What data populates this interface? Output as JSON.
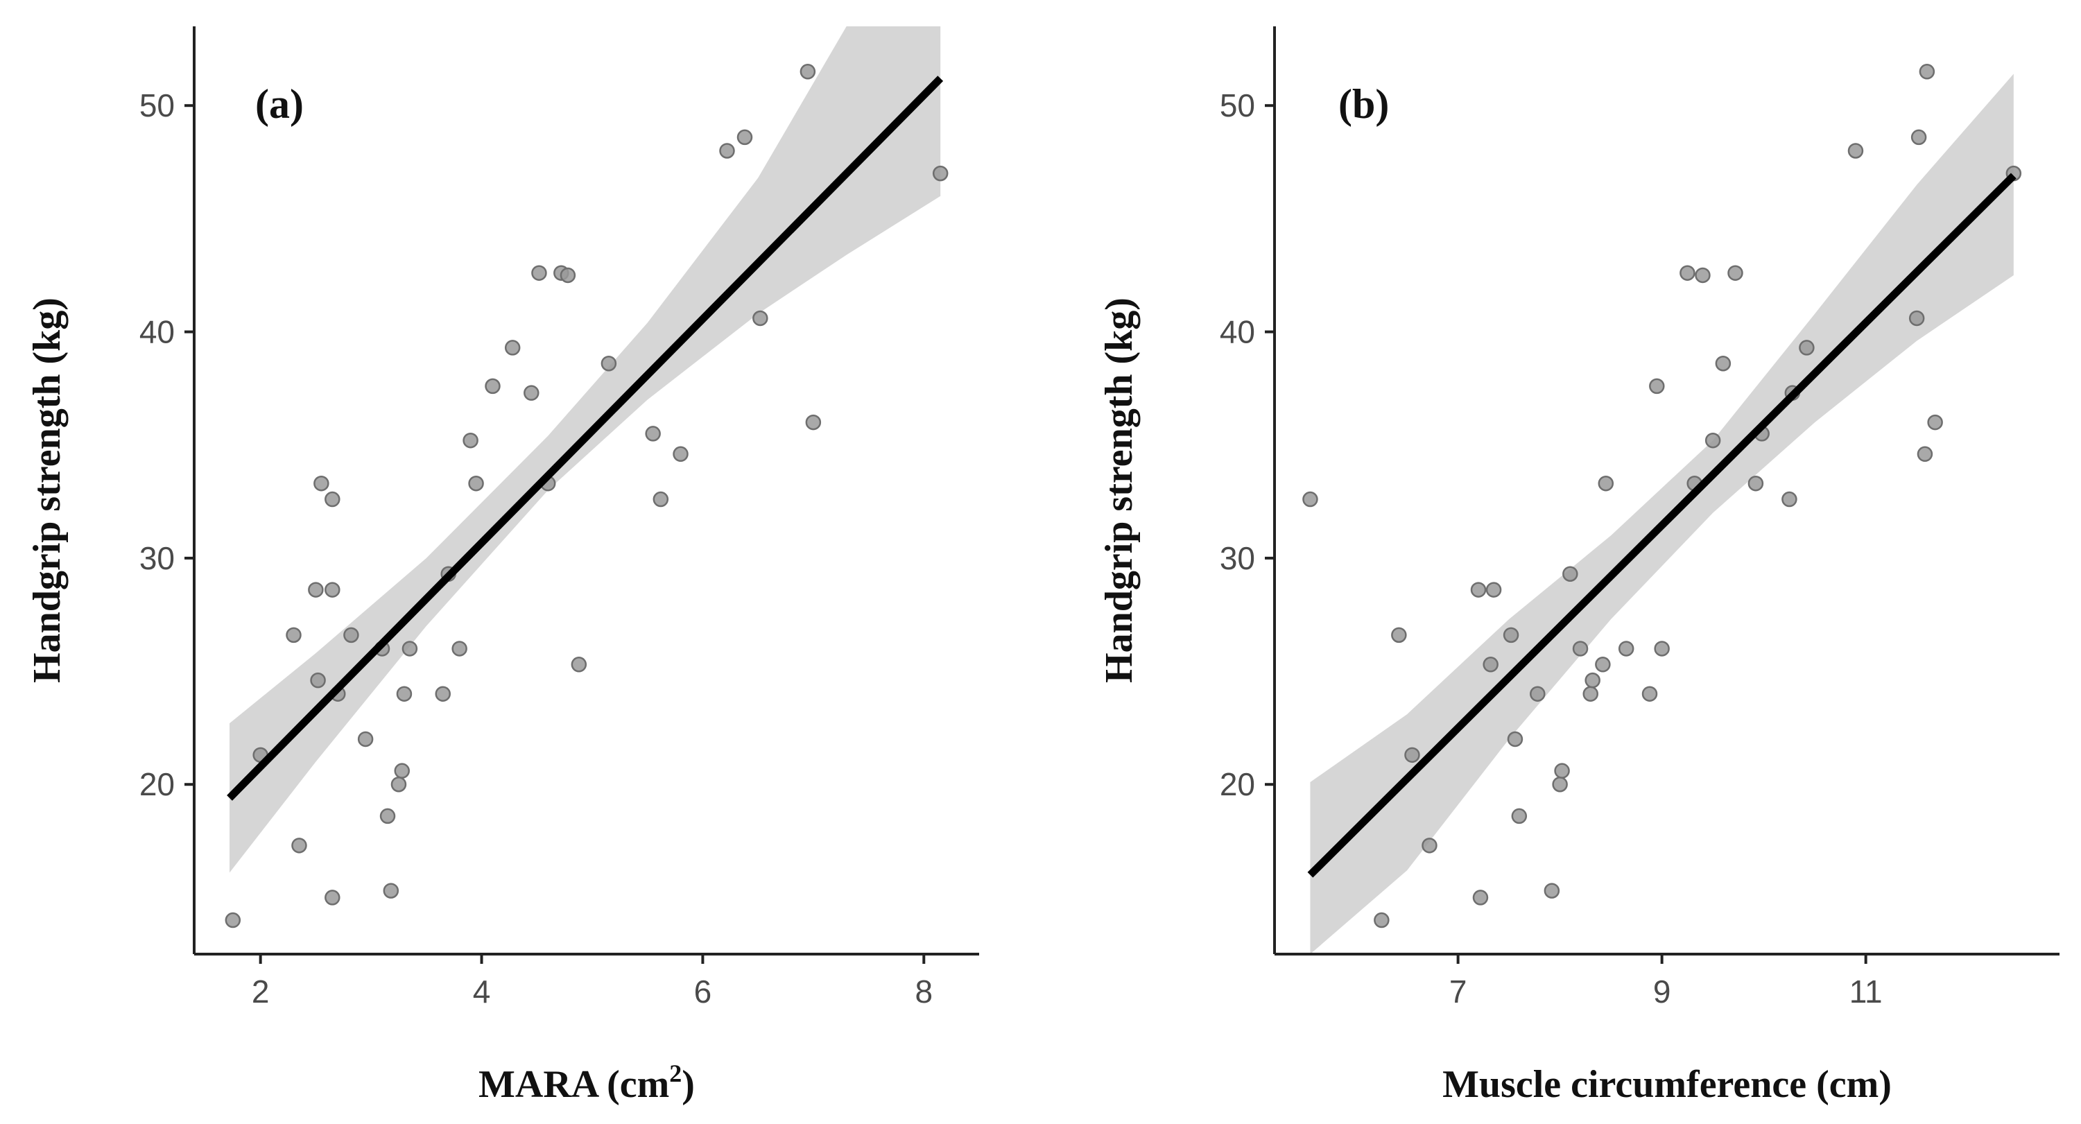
{
  "chart_data": [
    {
      "type": "scatter",
      "panel_label": "(a)",
      "xlabel": "MARA (cm",
      "xlabel_superscript": "2",
      "xlabel_suffix": ")",
      "ylabel": "Handgrip strength (kg)",
      "xlim": [
        1.4,
        8.5
      ],
      "ylim": [
        12.5,
        53.5
      ],
      "xticks": [
        2,
        4,
        6,
        8
      ],
      "yticks": [
        20,
        30,
        40,
        50
      ],
      "points": [
        {
          "x": 1.75,
          "y": 14.0
        },
        {
          "x": 2.0,
          "y": 21.3
        },
        {
          "x": 2.3,
          "y": 26.6
        },
        {
          "x": 2.35,
          "y": 17.3
        },
        {
          "x": 2.5,
          "y": 28.6
        },
        {
          "x": 2.52,
          "y": 24.6
        },
        {
          "x": 2.55,
          "y": 33.3
        },
        {
          "x": 2.65,
          "y": 28.6
        },
        {
          "x": 2.65,
          "y": 32.6
        },
        {
          "x": 2.65,
          "y": 15.0
        },
        {
          "x": 2.7,
          "y": 24.0
        },
        {
          "x": 2.82,
          "y": 26.6
        },
        {
          "x": 2.95,
          "y": 22.0
        },
        {
          "x": 3.1,
          "y": 26.0
        },
        {
          "x": 3.15,
          "y": 18.6
        },
        {
          "x": 3.18,
          "y": 15.3
        },
        {
          "x": 3.25,
          "y": 20.0
        },
        {
          "x": 3.28,
          "y": 20.6
        },
        {
          "x": 3.3,
          "y": 24.0
        },
        {
          "x": 3.35,
          "y": 26.0
        },
        {
          "x": 3.65,
          "y": 24.0
        },
        {
          "x": 3.7,
          "y": 29.3
        },
        {
          "x": 3.8,
          "y": 26.0
        },
        {
          "x": 3.9,
          "y": 35.2
        },
        {
          "x": 3.95,
          "y": 33.3
        },
        {
          "x": 4.1,
          "y": 37.6
        },
        {
          "x": 4.28,
          "y": 39.3
        },
        {
          "x": 4.45,
          "y": 37.3
        },
        {
          "x": 4.52,
          "y": 42.6
        },
        {
          "x": 4.6,
          "y": 33.3
        },
        {
          "x": 4.72,
          "y": 42.6
        },
        {
          "x": 4.78,
          "y": 42.5
        },
        {
          "x": 4.88,
          "y": 25.3
        },
        {
          "x": 5.15,
          "y": 38.6
        },
        {
          "x": 5.55,
          "y": 35.5
        },
        {
          "x": 5.62,
          "y": 32.6
        },
        {
          "x": 5.8,
          "y": 34.6
        },
        {
          "x": 6.22,
          "y": 48.0
        },
        {
          "x": 6.38,
          "y": 48.6
        },
        {
          "x": 6.52,
          "y": 40.6
        },
        {
          "x": 6.95,
          "y": 51.5
        },
        {
          "x": 7.0,
          "y": 36.0
        },
        {
          "x": 8.15,
          "y": 47.0
        }
      ],
      "fit": {
        "x0": 1.72,
        "y0": 19.4,
        "x1": 8.15,
        "y1": 51.2
      },
      "ci_band": [
        {
          "x": 1.72,
          "lo": 16.1,
          "hi": 22.7
        },
        {
          "x": 2.5,
          "lo": 21.0,
          "hi": 25.8
        },
        {
          "x": 3.5,
          "lo": 27.0,
          "hi": 30.0
        },
        {
          "x": 4.6,
          "lo": 33.0,
          "hi": 35.4
        },
        {
          "x": 5.5,
          "lo": 37.0,
          "hi": 40.4
        },
        {
          "x": 6.5,
          "lo": 40.8,
          "hi": 46.8
        },
        {
          "x": 7.3,
          "lo": 43.4,
          "hi": 53.5
        },
        {
          "x": 8.15,
          "lo": 46.0,
          "hi": 53.5
        }
      ]
    },
    {
      "type": "scatter",
      "panel_label": "(b)",
      "xlabel": "Muscle circumference (cm)",
      "ylabel": "Handgrip strength (kg)",
      "xlim": [
        5.2,
        12.9
      ],
      "ylim": [
        12.5,
        53.5
      ],
      "xticks": [
        7,
        9,
        11
      ],
      "yticks": [
        20,
        30,
        40,
        50
      ],
      "points": [
        {
          "x": 5.55,
          "y": 32.6
        },
        {
          "x": 6.25,
          "y": 14.0
        },
        {
          "x": 6.42,
          "y": 26.6
        },
        {
          "x": 6.55,
          "y": 21.3
        },
        {
          "x": 6.72,
          "y": 17.3
        },
        {
          "x": 7.2,
          "y": 28.6
        },
        {
          "x": 7.22,
          "y": 15.0
        },
        {
          "x": 7.32,
          "y": 25.3
        },
        {
          "x": 7.35,
          "y": 28.6
        },
        {
          "x": 7.52,
          "y": 26.6
        },
        {
          "x": 7.56,
          "y": 22.0
        },
        {
          "x": 7.6,
          "y": 18.6
        },
        {
          "x": 7.78,
          "y": 24.0
        },
        {
          "x": 7.92,
          "y": 15.3
        },
        {
          "x": 8.0,
          "y": 20.0
        },
        {
          "x": 8.02,
          "y": 20.6
        },
        {
          "x": 8.1,
          "y": 29.3
        },
        {
          "x": 8.2,
          "y": 26.0
        },
        {
          "x": 8.3,
          "y": 24.0
        },
        {
          "x": 8.32,
          "y": 24.6
        },
        {
          "x": 8.42,
          "y": 25.3
        },
        {
          "x": 8.45,
          "y": 33.3
        },
        {
          "x": 8.65,
          "y": 26.0
        },
        {
          "x": 8.88,
          "y": 24.0
        },
        {
          "x": 8.95,
          "y": 37.6
        },
        {
          "x": 9.0,
          "y": 26.0
        },
        {
          "x": 9.25,
          "y": 42.6
        },
        {
          "x": 9.32,
          "y": 33.3
        },
        {
          "x": 9.4,
          "y": 42.5
        },
        {
          "x": 9.5,
          "y": 35.2
        },
        {
          "x": 9.6,
          "y": 38.6
        },
        {
          "x": 9.72,
          "y": 42.6
        },
        {
          "x": 9.92,
          "y": 33.3
        },
        {
          "x": 9.98,
          "y": 35.5
        },
        {
          "x": 10.25,
          "y": 32.6
        },
        {
          "x": 10.28,
          "y": 37.3
        },
        {
          "x": 10.42,
          "y": 39.3
        },
        {
          "x": 10.9,
          "y": 48.0
        },
        {
          "x": 11.5,
          "y": 40.6
        },
        {
          "x": 11.52,
          "y": 48.6
        },
        {
          "x": 11.58,
          "y": 34.6
        },
        {
          "x": 11.6,
          "y": 51.5
        },
        {
          "x": 11.68,
          "y": 36.0
        },
        {
          "x": 12.45,
          "y": 47.0
        }
      ],
      "fit": {
        "x0": 5.55,
        "y0": 16.0,
        "x1": 12.45,
        "y1": 46.9
      },
      "ci_band": [
        {
          "x": 5.55,
          "lo": 12.5,
          "hi": 20.1
        },
        {
          "x": 6.5,
          "lo": 16.2,
          "hi": 23.1
        },
        {
          "x": 7.5,
          "lo": 22.0,
          "hi": 27.3
        },
        {
          "x": 8.5,
          "lo": 27.3,
          "hi": 31.0
        },
        {
          "x": 9.5,
          "lo": 32.0,
          "hi": 35.2
        },
        {
          "x": 10.5,
          "lo": 36.0,
          "hi": 40.8
        },
        {
          "x": 11.5,
          "lo": 39.6,
          "hi": 46.5
        },
        {
          "x": 12.45,
          "lo": 42.5,
          "hi": 51.4
        }
      ]
    }
  ]
}
